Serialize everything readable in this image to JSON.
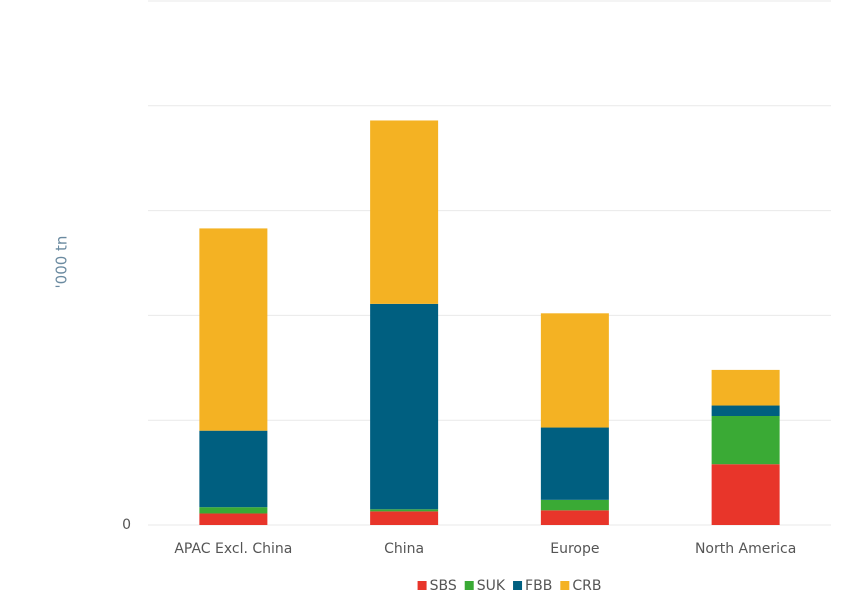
{
  "chart_data": {
    "type": "stacked-bar",
    "y_label": "'000 tn",
    "categories": [
      "APAC Excl. China",
      "China",
      "Europe",
      "North America"
    ],
    "series": [
      {
        "name": "SBS",
        "color": "#e8352a",
        "values": [
          110,
          130,
          140,
          580
        ]
      },
      {
        "name": "SUK",
        "color": "#3aaa35",
        "values": [
          60,
          20,
          100,
          460
        ]
      },
      {
        "name": "FBB",
        "color": "#005f80",
        "values": [
          730,
          1960,
          690,
          100
        ]
      },
      {
        "name": "CRB",
        "color": "#f4b223",
        "values": [
          1930,
          1750,
          1090,
          340
        ]
      }
    ],
    "ylim": [
      0,
      5000
    ],
    "yticks": [
      0,
      {
        "value": 1000,
        "label": null
      },
      {
        "value": 2000,
        "label": null
      },
      {
        "value": 3000,
        "label": null
      },
      {
        "value": 4000,
        "label": null
      },
      {
        "value": 5000,
        "label": null
      }
    ],
    "grid": true
  }
}
